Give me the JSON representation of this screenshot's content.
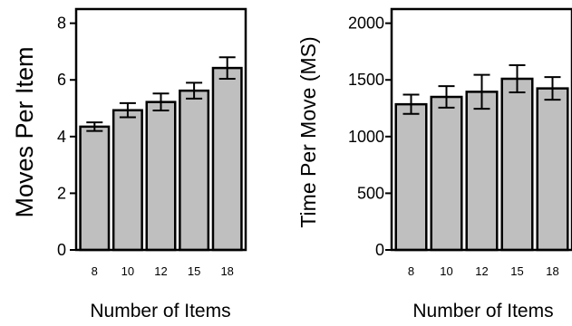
{
  "chart_data": [
    {
      "type": "bar",
      "categories": [
        "8",
        "10",
        "12",
        "15",
        "18"
      ],
      "values": [
        4.35,
        4.93,
        5.22,
        5.62,
        6.42
      ],
      "error": [
        0.15,
        0.25,
        0.3,
        0.28,
        0.38
      ],
      "xlabel": "Number of Items",
      "ylabel": "Moves Per Item",
      "ylim": [
        0,
        8.5
      ],
      "yticks": [
        0,
        2,
        4,
        6,
        8
      ],
      "grid": false,
      "bar_color": "#bfbfbf",
      "edge_color": "#000000"
    },
    {
      "type": "bar",
      "categories": [
        "8",
        "10",
        "12",
        "15",
        "18"
      ],
      "values": [
        1285,
        1350,
        1395,
        1510,
        1425
      ],
      "error": [
        85,
        95,
        150,
        120,
        100
      ],
      "xlabel": "Number of Items",
      "ylabel": "Time Per Move (MS)",
      "ylim": [
        0,
        2125
      ],
      "yticks": [
        0,
        500,
        1000,
        1500,
        2000
      ],
      "grid": false,
      "bar_color": "#bfbfbf",
      "edge_color": "#000000"
    }
  ]
}
